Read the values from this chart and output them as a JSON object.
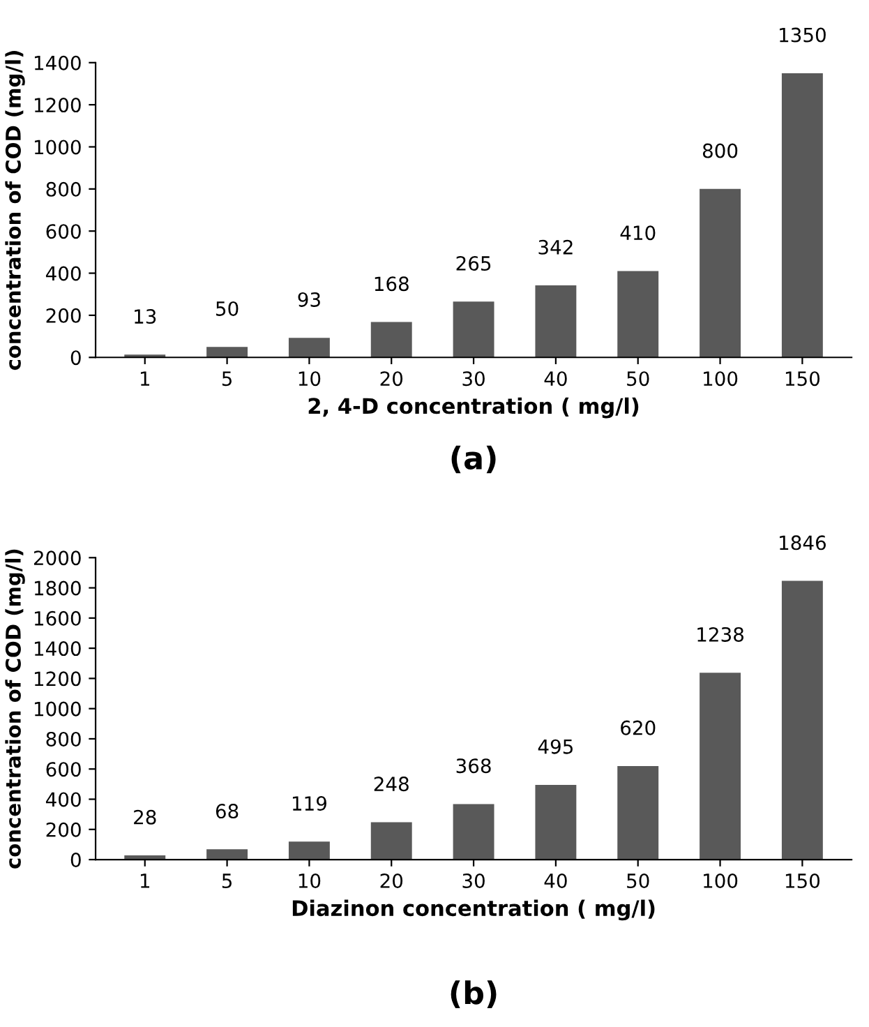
{
  "chart_data": [
    {
      "type": "bar",
      "title": "(a)",
      "xlabel": "2, 4-D concentration ( mg/l)",
      "ylabel": "concentration of COD (mg/l)",
      "categories": [
        "1",
        "5",
        "10",
        "20",
        "30",
        "40",
        "50",
        "100",
        "150"
      ],
      "values": [
        13,
        50,
        93,
        168,
        265,
        342,
        410,
        800,
        1350
      ],
      "color": "#595959",
      "ylim": [
        0,
        1400
      ],
      "yticks": [
        0,
        200,
        400,
        600,
        800,
        1000,
        1200,
        1400
      ],
      "data_labels": true
    },
    {
      "type": "bar",
      "title": "(b)",
      "xlabel": "Diazinon concentration ( mg/l)",
      "ylabel": "concentration of COD (mg/l)",
      "categories": [
        "1",
        "5",
        "10",
        "20",
        "30",
        "40",
        "50",
        "100",
        "150"
      ],
      "values": [
        28,
        68,
        119,
        248,
        368,
        495,
        620,
        1238,
        1846
      ],
      "color": "#595959",
      "ylim": [
        0,
        2000
      ],
      "yticks": [
        0,
        200,
        400,
        600,
        800,
        1000,
        1200,
        1400,
        1600,
        1800,
        2000
      ],
      "data_labels": true
    }
  ]
}
